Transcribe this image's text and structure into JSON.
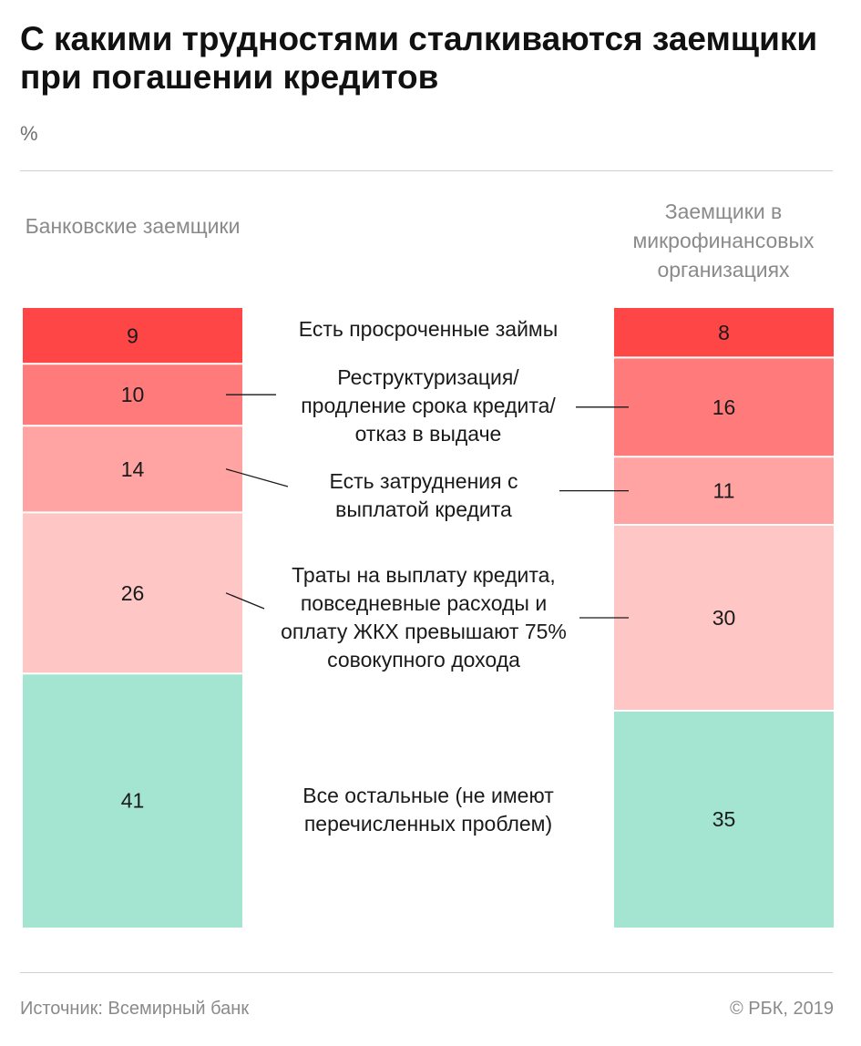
{
  "header": {
    "title": "С какими трудностями сталкиваются заемщики при погашении кредитов",
    "unit": "%"
  },
  "chart_data": {
    "type": "bar",
    "stacked": true,
    "groups": [
      "Банковские заемщики",
      "Заемщики в микрофинансовых организациях"
    ],
    "categories": [
      "Есть просроченные займы",
      "Реструктуризация/ продление срока кредита/отказ в выдаче",
      "Есть затруднения с выплатой кредита",
      "Траты на выплату кредита, повседневные расходы и оплату ЖКХ превышают 75% совокупного дохода",
      "Все остальные (не имеют перечисленных проблем)"
    ],
    "series": [
      {
        "name": "Банковские заемщики",
        "values": [
          9,
          10,
          14,
          26,
          41
        ]
      },
      {
        "name": "Заемщики в микрофинансовых организациях",
        "values": [
          8,
          16,
          11,
          30,
          35
        ]
      }
    ],
    "colors": [
      "#ff4646",
      "#ff7b7b",
      "#ffa3a3",
      "#ffc6c6",
      "#a3e5d0"
    ],
    "ylim": [
      0,
      100
    ],
    "legend": "center"
  },
  "footer": {
    "source": "Источник: Всемирный банк",
    "copyright": "© РБК, 2019"
  }
}
